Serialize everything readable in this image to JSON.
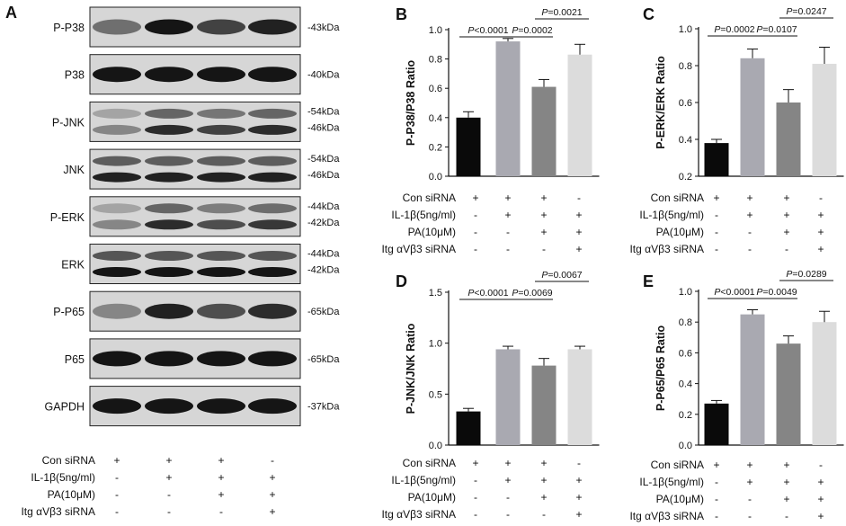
{
  "western_blot": {
    "panel_letter": "A",
    "bands": [
      {
        "name": "P-P38",
        "kda": [
          "-43kDa"
        ],
        "rows": 1,
        "intensity": [
          0.55,
          0.95,
          0.75,
          0.9
        ]
      },
      {
        "name": "P38",
        "kda": [
          "-40kDa"
        ],
        "rows": 1,
        "intensity": [
          0.95,
          0.95,
          0.95,
          0.95
        ]
      },
      {
        "name": "P-JNK",
        "kda": [
          "-54kDa",
          "-46kDa"
        ],
        "rows": 2,
        "intensity": [
          0.45,
          0.85,
          0.75,
          0.85
        ]
      },
      {
        "name": "JNK",
        "kda": [
          "-54kDa",
          "-46kDa"
        ],
        "rows": 2,
        "intensity": [
          0.9,
          0.9,
          0.9,
          0.9
        ]
      },
      {
        "name": "P-ERK",
        "kda": [
          "-44kDa",
          "-42kDa"
        ],
        "rows": 2,
        "intensity": [
          0.45,
          0.85,
          0.7,
          0.8
        ]
      },
      {
        "name": "ERK",
        "kda": [
          "-44kDa",
          "-42kDa"
        ],
        "rows": 2,
        "intensity": [
          0.95,
          0.95,
          0.95,
          0.95
        ]
      },
      {
        "name": "P-P65",
        "kda": [
          "-65kDa"
        ],
        "rows": 1,
        "intensity": [
          0.45,
          0.9,
          0.7,
          0.85
        ]
      },
      {
        "name": "P65",
        "kda": [
          "-65kDa"
        ],
        "rows": 1,
        "intensity": [
          0.95,
          0.95,
          0.95,
          0.95
        ]
      },
      {
        "name": "GAPDH",
        "kda": [
          "-37kDa"
        ],
        "rows": 1,
        "intensity": [
          0.95,
          0.95,
          0.95,
          0.95
        ]
      }
    ]
  },
  "conditions": [
    {
      "label": "Con siRNA",
      "marks": [
        "+",
        "+",
        "+",
        "-"
      ]
    },
    {
      "label": "IL-1β(5ng/ml)",
      "marks": [
        "-",
        "+",
        "+",
        "+"
      ]
    },
    {
      "label": "PA(10μM)",
      "marks": [
        "-",
        "-",
        "+",
        "+"
      ]
    },
    {
      "label": "Itg αVβ3 siRNA",
      "marks": [
        "-",
        "-",
        "-",
        "+"
      ]
    }
  ],
  "bar_colors": [
    "#0a0a0a",
    "#a9a9b1",
    "#858585",
    "#dcdcdc"
  ],
  "chart_data": [
    {
      "panel": "B",
      "type": "bar",
      "ylabel": "P-P38/P38 Ratio",
      "ylim": [
        0.0,
        1.0
      ],
      "yticks": [
        "0.0",
        "0.2",
        "0.4",
        "0.6",
        "0.8",
        "1.0"
      ],
      "values": [
        0.4,
        0.92,
        0.61,
        0.83
      ],
      "errors": [
        0.04,
        0.02,
        0.05,
        0.07
      ],
      "comparisons": [
        {
          "from": 0,
          "to": 1,
          "label": "P<0.0001"
        },
        {
          "from": 1,
          "to": 2,
          "label": "P=0.0002"
        },
        {
          "from": 2,
          "to": 3,
          "label": "P=0.0021"
        }
      ]
    },
    {
      "panel": "C",
      "type": "bar",
      "ylabel": "P-ERK/ERK Ratio",
      "ylim": [
        0.2,
        1.0
      ],
      "yticks": [
        "0.2",
        "0.4",
        "0.6",
        "0.8",
        "1.0"
      ],
      "values": [
        0.38,
        0.84,
        0.6,
        0.81
      ],
      "errors": [
        0.02,
        0.05,
        0.07,
        0.09
      ],
      "comparisons": [
        {
          "from": 0,
          "to": 1,
          "label": "P=0.0002"
        },
        {
          "from": 1,
          "to": 2,
          "label": "P=0.0107"
        },
        {
          "from": 2,
          "to": 3,
          "label": "P=0.0247"
        }
      ]
    },
    {
      "panel": "D",
      "type": "bar",
      "ylabel": "P-JNK/JNK Ratio",
      "ylim": [
        0.0,
        1.5
      ],
      "yticks": [
        "0.0",
        "0.5",
        "1.0",
        "1.5"
      ],
      "values": [
        0.33,
        0.94,
        0.78,
        0.94
      ],
      "errors": [
        0.03,
        0.03,
        0.07,
        0.03
      ],
      "comparisons": [
        {
          "from": 0,
          "to": 1,
          "label": "P<0.0001"
        },
        {
          "from": 1,
          "to": 2,
          "label": "P=0.0069"
        },
        {
          "from": 2,
          "to": 3,
          "label": "P=0.0067"
        }
      ]
    },
    {
      "panel": "E",
      "type": "bar",
      "ylabel": "P-P65/P65 Ratio",
      "ylim": [
        0.0,
        1.0
      ],
      "yticks": [
        "0.0",
        "0.2",
        "0.4",
        "0.6",
        "0.8",
        "1.0"
      ],
      "values": [
        0.27,
        0.85,
        0.66,
        0.8
      ],
      "errors": [
        0.02,
        0.03,
        0.05,
        0.07
      ],
      "comparisons": [
        {
          "from": 0,
          "to": 1,
          "label": "P<0.0001"
        },
        {
          "from": 1,
          "to": 2,
          "label": "P=0.0049"
        },
        {
          "from": 2,
          "to": 3,
          "label": "P=0.0289"
        }
      ]
    }
  ]
}
